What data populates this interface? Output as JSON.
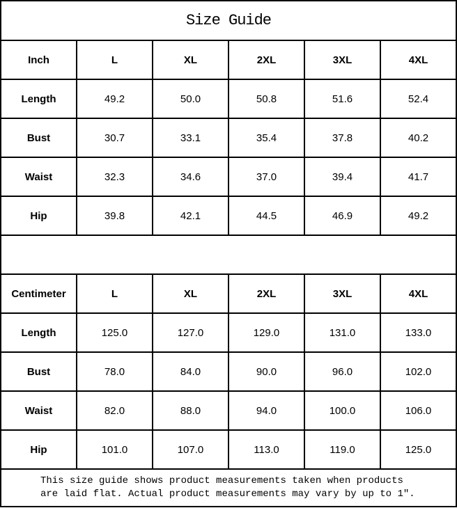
{
  "title": "Size Guide",
  "colors": {
    "border": "#000000",
    "background": "#ffffff",
    "text": "#000000"
  },
  "tables": [
    {
      "unit_label": "Inch",
      "size_headers": [
        "L",
        "XL",
        "2XL",
        "3XL",
        "4XL"
      ],
      "rows": [
        {
          "label": "Length",
          "values": [
            "49.2",
            "50.0",
            "50.8",
            "51.6",
            "52.4"
          ]
        },
        {
          "label": "Bust",
          "values": [
            "30.7",
            "33.1",
            "35.4",
            "37.8",
            "40.2"
          ]
        },
        {
          "label": "Waist",
          "values": [
            "32.3",
            "34.6",
            "37.0",
            "39.4",
            "41.7"
          ]
        },
        {
          "label": "Hip",
          "values": [
            "39.8",
            "42.1",
            "44.5",
            "46.9",
            "49.2"
          ]
        }
      ]
    },
    {
      "unit_label": "Centimeter",
      "size_headers": [
        "L",
        "XL",
        "2XL",
        "3XL",
        "4XL"
      ],
      "rows": [
        {
          "label": "Length",
          "values": [
            "125.0",
            "127.0",
            "129.0",
            "131.0",
            "133.0"
          ]
        },
        {
          "label": "Bust",
          "values": [
            "78.0",
            "84.0",
            "90.0",
            "96.0",
            "102.0"
          ]
        },
        {
          "label": "Waist",
          "values": [
            "82.0",
            "88.0",
            "94.0",
            "100.0",
            "106.0"
          ]
        },
        {
          "label": "Hip",
          "values": [
            "101.0",
            "107.0",
            "113.0",
            "119.0",
            "125.0"
          ]
        }
      ]
    }
  ],
  "footer_note": {
    "line1": "This size guide shows product measurements taken when products",
    "line2": "are laid flat. Actual product measurements may vary by up to 1″."
  }
}
